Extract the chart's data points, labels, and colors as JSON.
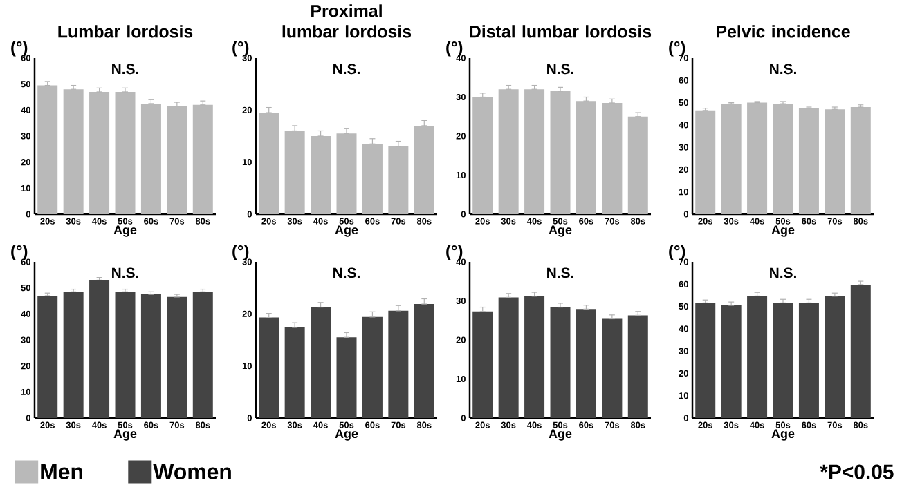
{
  "chart_data": [
    {
      "type": "bar",
      "title": "Lumbar lordosis",
      "xlabel": "Age",
      "ylabel": "(°)",
      "annotations": [
        "N.S."
      ],
      "categories": [
        "20s",
        "30s",
        "40s",
        "50s",
        "60s",
        "70s",
        "80s"
      ],
      "legend": "bottom left",
      "ylim": [
        0,
        60
      ],
      "yticks": [
        0,
        10,
        20,
        30,
        40,
        50,
        60
      ],
      "series": [
        {
          "name": "Men",
          "color": "#b9b9b9",
          "values": [
            49.5,
            48,
            47,
            47,
            42.5,
            41.5,
            42
          ],
          "errors": [
            [
              49.5,
              51
            ],
            [
              48,
              49.5
            ],
            [
              47,
              48.5
            ],
            [
              47,
              48.5
            ],
            [
              42.5,
              44
            ],
            [
              41.5,
              43
            ],
            [
              42,
              43.5
            ]
          ]
        }
      ]
    },
    {
      "type": "bar",
      "title": "Proximal lumbar lordosis",
      "xlabel": "Age",
      "ylabel": "(°)",
      "annotations": [
        "N.S."
      ],
      "categories": [
        "20s",
        "30s",
        "40s",
        "50s",
        "60s",
        "70s",
        "80s"
      ],
      "ylim": [
        0,
        30
      ],
      "yticks": [
        0,
        10,
        20,
        30
      ],
      "series": [
        {
          "color": "#b9b9b9",
          "values": [
            19.5,
            16,
            15,
            15.5,
            13.5,
            13,
            17
          ],
          "errors": [
            [
              19.5,
              20.5
            ],
            [
              16,
              17
            ],
            [
              15,
              16
            ],
            [
              15.5,
              16.5
            ],
            [
              13.5,
              14.5
            ],
            [
              13,
              14
            ],
            [
              17,
              18
            ]
          ]
        }
      ]
    },
    {
      "type": "bar",
      "title": "Distal lumbar lordosis",
      "xlabel": "Age",
      "ylabel": "(°)",
      "annotations": [
        "N.S."
      ],
      "categories": [
        "20s",
        "30s",
        "40s",
        "50s",
        "60s",
        "70s",
        "80s"
      ],
      "ylim": [
        0,
        40
      ],
      "yticks": [
        0,
        10,
        20,
        30,
        40
      ],
      "series": [
        {
          "color": "#b9b9b9",
          "values": [
            30,
            32,
            32,
            31.5,
            29,
            28.5,
            25
          ],
          "errors": [
            [
              30,
              31
            ],
            [
              32,
              33
            ],
            [
              32,
              33
            ],
            [
              31.5,
              32.5
            ],
            [
              29,
              30
            ],
            [
              28.5,
              29.5
            ],
            [
              25,
              26
            ]
          ]
        }
      ]
    },
    {
      "type": "bar",
      "title": "Pelvic incidence",
      "xlabel": "Age",
      "ylabel": "(°)",
      "annotations": [
        "N.S."
      ],
      "categories": [
        "20s",
        "30s",
        "40s",
        "50s",
        "60s",
        "70s",
        "80s"
      ],
      "ylim": [
        0,
        70
      ],
      "yticks": [
        0,
        10,
        20,
        30,
        40,
        50,
        60,
        70
      ],
      "series": [
        {
          "color": "#b9b9b9",
          "values": [
            46.5,
            49.5,
            50,
            49.5,
            47.5,
            47,
            48
          ],
          "errors": [
            [
              46.5,
              47.5
            ],
            [
              49.5,
              50
            ],
            [
              50,
              50.5
            ],
            [
              49.5,
              50.5
            ],
            [
              47.5,
              48
            ],
            [
              47,
              48
            ],
            [
              48,
              49
            ]
          ]
        }
      ]
    },
    {
      "type": "bar",
      "xlabel": "Age",
      "ylabel": "(°)",
      "annotations": [
        "N.S."
      ],
      "categories": [
        "20s",
        "30s",
        "40s",
        "50s",
        "60s",
        "70s",
        "80s"
      ],
      "legend": "bottom right",
      "ylim": [
        0,
        60
      ],
      "yticks": [
        0,
        10,
        20,
        30,
        40,
        50,
        60
      ],
      "series": [
        {
          "name": "Women",
          "color": "#444444",
          "values": [
            47,
            48.5,
            53,
            48.5,
            47.5,
            46.5,
            48.5
          ],
          "errors": [
            [
              47,
              48
            ],
            [
              48.5,
              49.5
            ],
            [
              53,
              54
            ],
            [
              48.5,
              49.5
            ],
            [
              47.5,
              48.5
            ],
            [
              46.5,
              47.5
            ],
            [
              48.5,
              49.5
            ]
          ]
        }
      ]
    },
    {
      "type": "bar",
      "xlabel": "Age",
      "ylabel": "(°)",
      "annotations": [
        "N.S."
      ],
      "categories": [
        "20s",
        "30s",
        "40s",
        "50s",
        "60s",
        "70s",
        "80s"
      ],
      "ylim": [
        0,
        30
      ],
      "yticks": [
        0,
        10,
        20,
        30
      ],
      "series": [
        {
          "color": "#444444",
          "values": [
            19.3,
            17.4,
            21.3,
            15.5,
            19.4,
            20.6,
            21.9
          ],
          "errors": [
            [
              19.3,
              20.1
            ],
            [
              17.4,
              18.3
            ],
            [
              21.3,
              22.2
            ],
            [
              15.5,
              16.4
            ],
            [
              19.4,
              20.4
            ],
            [
              20.6,
              21.6
            ],
            [
              21.9,
              22.9
            ]
          ]
        }
      ]
    },
    {
      "type": "bar",
      "xlabel": "Age",
      "ylabel": "(°)",
      "annotations": [
        "N.S."
      ],
      "categories": [
        "20s",
        "30s",
        "40s",
        "50s",
        "60s",
        "70s",
        "80s"
      ],
      "ylim": [
        0,
        40
      ],
      "yticks": [
        0,
        10,
        20,
        30,
        40
      ],
      "series": [
        {
          "color": "#444444",
          "values": [
            27.3,
            30.9,
            31.2,
            28.4,
            27.9,
            25.4,
            26.3
          ],
          "errors": [
            [
              27.3,
              28.4
            ],
            [
              30.9,
              31.9
            ],
            [
              31.2,
              32.2
            ],
            [
              28.4,
              29.4
            ],
            [
              27.9,
              28.9
            ],
            [
              25.4,
              26.4
            ],
            [
              26.3,
              27.3
            ]
          ]
        }
      ]
    },
    {
      "type": "bar",
      "xlabel": "Age",
      "ylabel": "(°)",
      "annotations": [
        "N.S.",
        "*P<0.05"
      ],
      "categories": [
        "20s",
        "30s",
        "40s",
        "50s",
        "60s",
        "70s",
        "80s"
      ],
      "ylim": [
        0,
        70
      ],
      "yticks": [
        0,
        10,
        20,
        30,
        40,
        50,
        60,
        70
      ],
      "series": [
        {
          "color": "#444444",
          "values": [
            51.6,
            50.5,
            54.7,
            51.6,
            51.6,
            54.6,
            59.8
          ],
          "errors": [
            [
              51.6,
              52.9
            ],
            [
              50.5,
              52
            ],
            [
              54.7,
              56.3
            ],
            [
              51.6,
              53.2
            ],
            [
              51.6,
              53.2
            ],
            [
              54.6,
              56
            ],
            [
              59.8,
              61.3
            ]
          ]
        }
      ]
    }
  ]
}
